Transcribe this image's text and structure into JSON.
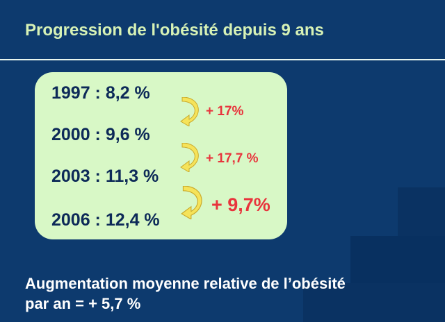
{
  "slide": {
    "title": "Progression de l'obésité depuis 9 ans",
    "rows": [
      {
        "text": "1997 : 8,2 %"
      },
      {
        "text": "2000 : 9,6 %"
      },
      {
        "text": "2003 : 11,3 %"
      },
      {
        "text": "2006 : 12,4 %"
      }
    ],
    "increases": [
      {
        "text": "+ 17%"
      },
      {
        "text": "+ 17,7 %"
      },
      {
        "text": "+ 9,7%"
      }
    ],
    "summary_line1": "Augmentation moyenne relative de l’obésité",
    "summary_line2": "par an = + 5,7 %",
    "colors": {
      "background": "#0d3a6e",
      "title": "#d7f2b6",
      "panel": "#d8f8c6",
      "year_text": "#0d2a58",
      "increase_text": "#e8343c",
      "arrow": "#f5e35a"
    },
    "icons": [
      "curved-arrow-icon",
      "curved-arrow-icon",
      "curved-arrow-icon"
    ]
  }
}
